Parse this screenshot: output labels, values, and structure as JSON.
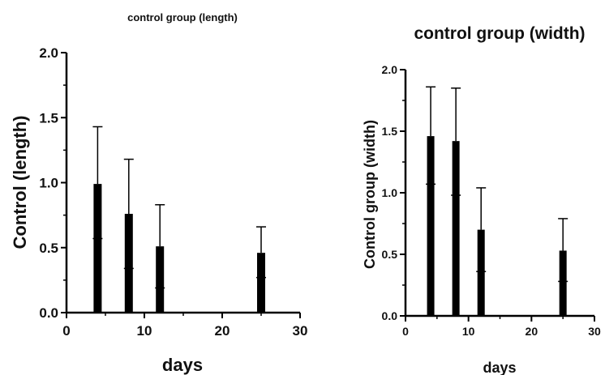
{
  "chart_data": [
    {
      "type": "bar",
      "title": "control group (length)",
      "xlabel": "days",
      "ylabel": "Control (length)",
      "x": [
        4,
        8,
        12,
        25
      ],
      "values": [
        0.99,
        0.76,
        0.51,
        0.46
      ],
      "error_upper": [
        1.43,
        1.18,
        0.83,
        0.66
      ],
      "inner_marks": [
        0.57,
        0.34,
        0.19,
        0.27
      ],
      "xlim": [
        0,
        30
      ],
      "ylim": [
        0,
        2.0
      ],
      "xticks": [
        "0",
        "10",
        "20",
        "30"
      ],
      "yticks": [
        "0.0",
        "0.5",
        "1.0",
        "1.5",
        "2.0"
      ],
      "grid": false,
      "bar_color": "#000000"
    },
    {
      "type": "bar",
      "title": "control group (width)",
      "xlabel": "days",
      "ylabel": "Control group (width)",
      "x": [
        4,
        8,
        12,
        25
      ],
      "values": [
        1.46,
        1.42,
        0.7,
        0.53
      ],
      "error_upper": [
        1.86,
        1.85,
        1.04,
        0.79
      ],
      "inner_marks": [
        1.07,
        0.98,
        0.36,
        0.28
      ],
      "xlim": [
        0,
        30
      ],
      "ylim": [
        0,
        2.0
      ],
      "xticks": [
        "0",
        "10",
        "20",
        "30"
      ],
      "yticks": [
        "0.0",
        "0.5",
        "1.0",
        "1.5",
        "2.0"
      ],
      "grid": false,
      "bar_color": "#000000"
    }
  ]
}
